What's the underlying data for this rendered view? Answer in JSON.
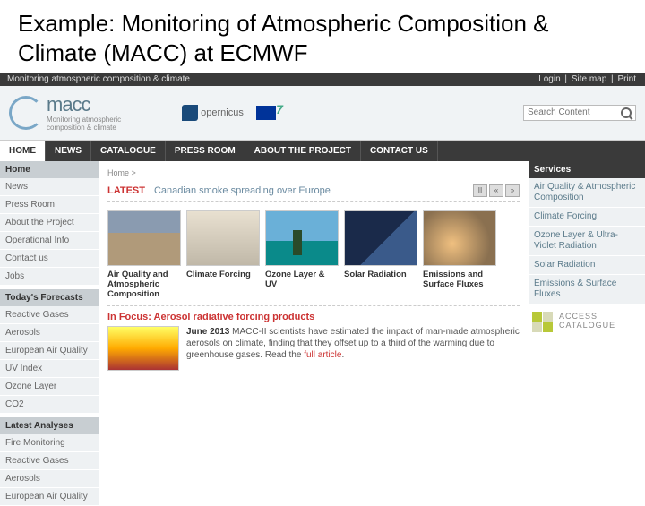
{
  "slide_title": "Example: Monitoring of Atmospheric Composition & Climate (MACC) at ECMWF",
  "topbar": {
    "left": "Monitoring atmospheric composition & climate",
    "login": "Login",
    "sitemap": "Site map",
    "print": "Print"
  },
  "logo": {
    "name": "macc",
    "sub1": "Monitoring atmospheric",
    "sub2": "composition & climate",
    "copernicus": "opernicus"
  },
  "search": {
    "placeholder": "Search Content"
  },
  "nav": [
    "HOME",
    "NEWS",
    "CATALOGUE",
    "PRESS ROOM",
    "ABOUT THE PROJECT",
    "CONTACT US"
  ],
  "breadcrumb": "Home >",
  "sidebar": {
    "home_title": "Home",
    "home_items": [
      "News",
      "Press Room",
      "About the Project",
      "Operational Info",
      "Contact us",
      "Jobs"
    ],
    "forecasts_title": "Today's Forecasts",
    "forecasts_items": [
      "Reactive Gases",
      "Aerosols",
      "European Air Quality",
      "UV Index",
      "Ozone Layer",
      "CO2"
    ],
    "analyses_title": "Latest Analyses",
    "analyses_items": [
      "Fire Monitoring",
      "Reactive Gases",
      "Aerosols",
      "European Air Quality"
    ]
  },
  "latest": {
    "label": "LATEST",
    "headline": "Canadian smoke spreading over Europe"
  },
  "tiles": [
    {
      "caption": "Air Quality and Atmospheric Composition",
      "imgclass": "traffic"
    },
    {
      "caption": "Climate Forcing",
      "imgclass": "clouds"
    },
    {
      "caption": "Ozone Layer & UV",
      "imgclass": "beach"
    },
    {
      "caption": "Solar Radiation",
      "imgclass": "solar"
    },
    {
      "caption": "Emissions and Surface Fluxes",
      "imgclass": "fire"
    }
  ],
  "focus": {
    "title": "In Focus: Aerosol radiative forcing products",
    "date": "June 2013",
    "body": "MACC-II scientists have estimated the impact of man-made atmospheric aerosols on climate, finding that they offset up to a third of the warming due to greenhouse gases. Read the ",
    "link": "full article"
  },
  "services": {
    "title": "Services",
    "items": [
      "Air Quality & Atmospheric Composition",
      "Climate Forcing",
      "Ozone Layer & Ultra-Violet Radiation",
      "Solar Radiation",
      "Emissions & Surface Fluxes"
    ]
  },
  "access": {
    "l1": "ACCESS",
    "l2": "CATALOGUE"
  }
}
